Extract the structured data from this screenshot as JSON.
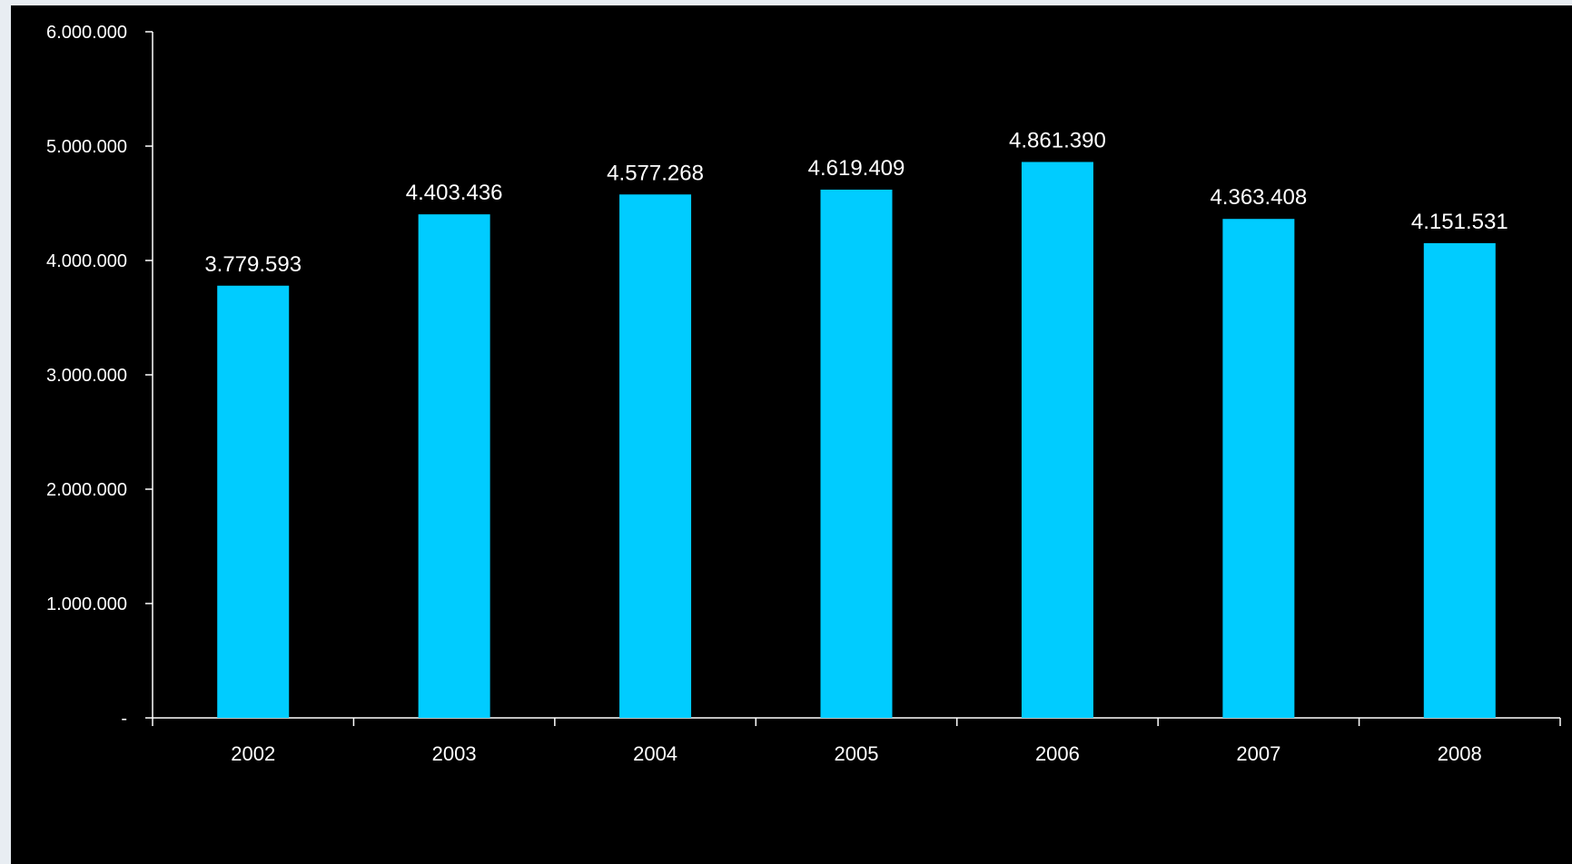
{
  "chart_data": {
    "type": "bar",
    "categories": [
      "2002",
      "2003",
      "2004",
      "2005",
      "2006",
      "2007",
      "2008"
    ],
    "values": [
      3779593,
      4403436,
      4577268,
      4619409,
      4861390,
      4363408,
      4151531
    ],
    "data_labels": [
      "3.779.593",
      "4.403.436",
      "4.577.268",
      "4.619.409",
      "4.861.390",
      "4.363.408",
      "4.151.531"
    ],
    "ylim": [
      0,
      6000000
    ],
    "yticks": [
      0,
      1000000,
      2000000,
      3000000,
      4000000,
      5000000,
      6000000
    ],
    "ytick_labels": [
      "-",
      "1.000.000",
      "2.000.000",
      "3.000.000",
      "4.000.000",
      "5.000.000",
      "6.000.000"
    ],
    "title": "",
    "xlabel": "",
    "ylabel": "",
    "grid": false,
    "bar_color": "#00ccff",
    "background_color": "#000000",
    "text_color": "#ffffff"
  }
}
